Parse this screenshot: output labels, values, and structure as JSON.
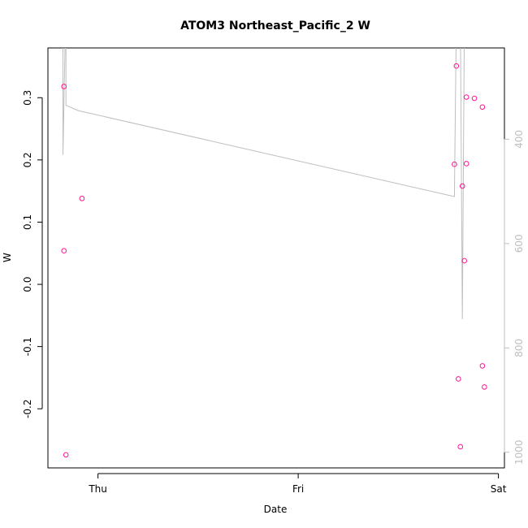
{
  "chart_data": {
    "type": "scatter",
    "title": "ATOM3 Northeast_Pacific_2 W",
    "xlabel": "Date",
    "ylabel": "W",
    "x_ticks": [
      {
        "label": "Thu",
        "value": 0.0
      },
      {
        "label": "Fri",
        "value": 1.0
      },
      {
        "label": "Sat",
        "value": 2.0
      }
    ],
    "xlim": [
      -0.25,
      2.03
    ],
    "ylim": [
      -0.295,
      0.38
    ],
    "y_ticks": [
      -0.2,
      -0.1,
      0.0,
      0.1,
      0.2,
      0.3
    ],
    "y_tick_labels": [
      "-0.2",
      "-0.1",
      "0.0",
      "0.1",
      "0.2",
      "0.3"
    ],
    "point_color": "#ff1493",
    "points": [
      {
        "x": -0.17,
        "y": 0.318
      },
      {
        "x": -0.17,
        "y": 0.054
      },
      {
        "x": -0.16,
        "y": -0.274
      },
      {
        "x": -0.08,
        "y": 0.138
      },
      {
        "x": 1.79,
        "y": 0.351
      },
      {
        "x": 1.78,
        "y": 0.193
      },
      {
        "x": 1.8,
        "y": -0.152
      },
      {
        "x": 1.81,
        "y": -0.261
      },
      {
        "x": 1.82,
        "y": 0.158
      },
      {
        "x": 1.83,
        "y": 0.038
      },
      {
        "x": 1.84,
        "y": 0.301
      },
      {
        "x": 1.84,
        "y": 0.194
      },
      {
        "x": 1.88,
        "y": 0.299
      },
      {
        "x": 1.92,
        "y": 0.285
      },
      {
        "x": 1.92,
        "y": -0.131
      },
      {
        "x": 1.93,
        "y": -0.165
      }
    ],
    "secondary_axis": {
      "color": "#bebebe",
      "ticks": [
        400,
        600,
        800,
        1000
      ],
      "tick_labels": [
        "400",
        "600",
        "800",
        "1000"
      ],
      "lim": [
        1030,
        225
      ],
      "line": [
        {
          "x": -0.175,
          "y": 170
        },
        {
          "x": -0.175,
          "y": 430
        },
        {
          "x": -0.16,
          "y": 130
        },
        {
          "x": -0.16,
          "y": 335
        },
        {
          "x": -0.1,
          "y": 345
        },
        {
          "x": 1.78,
          "y": 510
        },
        {
          "x": 1.79,
          "y": 170
        },
        {
          "x": 1.81,
          "y": 180
        },
        {
          "x": 1.82,
          "y": 745
        },
        {
          "x": 1.83,
          "y": 170
        }
      ]
    }
  }
}
